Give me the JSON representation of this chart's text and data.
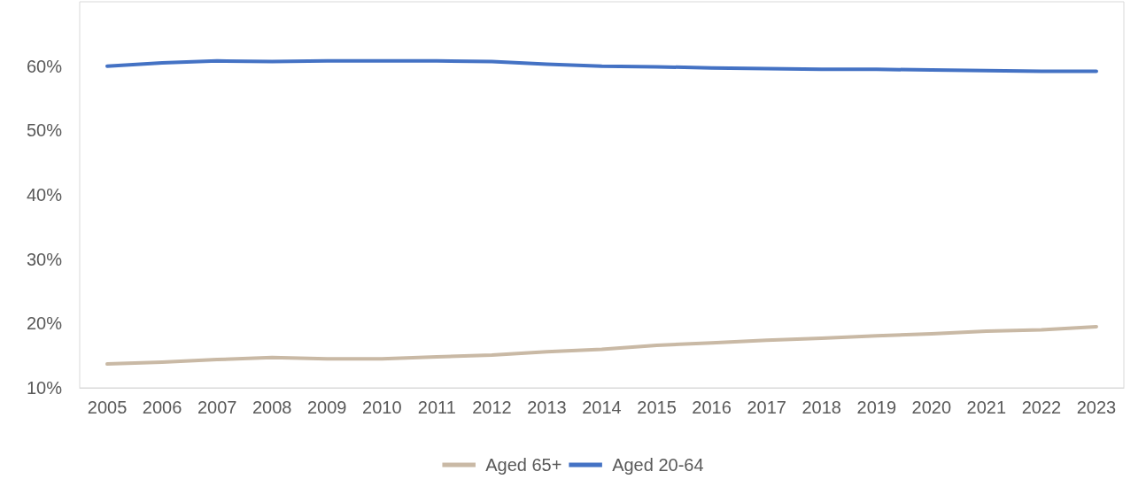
{
  "chart_data": {
    "type": "line",
    "categories": [
      "2005",
      "2006",
      "2007",
      "2008",
      "2009",
      "2010",
      "2011",
      "2012",
      "2013",
      "2014",
      "2015",
      "2016",
      "2017",
      "2018",
      "2019",
      "2020",
      "2021",
      "2022",
      "2023"
    ],
    "series": [
      {
        "name": "Aged 65+",
        "color": "#c9b9a5",
        "values": [
          13.7,
          14.0,
          14.4,
          14.7,
          14.5,
          14.5,
          14.8,
          15.1,
          15.6,
          16.0,
          16.6,
          17.0,
          17.4,
          17.7,
          18.1,
          18.4,
          18.8,
          19.0,
          19.5
        ]
      },
      {
        "name": "Aged 20-64",
        "color": "#4472c4",
        "values": [
          60.0,
          60.5,
          60.8,
          60.7,
          60.8,
          60.8,
          60.8,
          60.7,
          60.3,
          60.0,
          59.9,
          59.7,
          59.6,
          59.5,
          59.5,
          59.4,
          59.3,
          59.2,
          59.2
        ]
      }
    ],
    "ylim": [
      10,
      70
    ],
    "yticks": [
      {
        "value": 10,
        "label": "10%"
      },
      {
        "value": 20,
        "label": "20%"
      },
      {
        "value": 30,
        "label": "30%"
      },
      {
        "value": 40,
        "label": "40%"
      },
      {
        "value": 50,
        "label": "50%"
      },
      {
        "value": 60,
        "label": "60%"
      }
    ],
    "grid": false,
    "legend": "bottom",
    "marker": "none",
    "line_style": "solid"
  }
}
